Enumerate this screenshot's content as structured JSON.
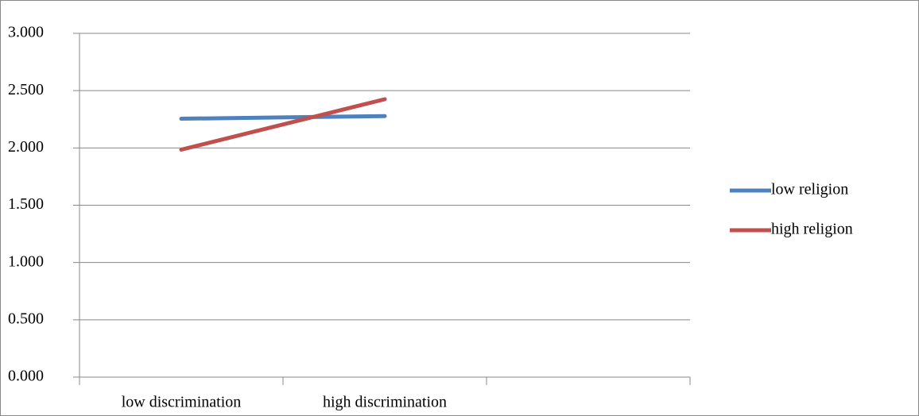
{
  "chart_data": {
    "type": "line",
    "categories": [
      "low discrimination",
      "high discrimination",
      null
    ],
    "series": [
      {
        "name": "low religion",
        "color": "#4f81bd",
        "values": [
          2.255,
          2.278,
          null
        ]
      },
      {
        "name": "high religion",
        "color": "#c0504d",
        "values": [
          1.985,
          2.425,
          null
        ]
      }
    ],
    "ylim": [
      0,
      3
    ],
    "yticks": [
      {
        "value": 0,
        "label": "0.000"
      },
      {
        "value": 0.5,
        "label": "0.500"
      },
      {
        "value": 1,
        "label": "1.000"
      },
      {
        "value": 1.5,
        "label": "1.500"
      },
      {
        "value": 2,
        "label": "2.000"
      },
      {
        "value": 2.5,
        "label": "2.500"
      },
      {
        "value": 3,
        "label": "3.000"
      }
    ],
    "grid": true,
    "legend": "right"
  }
}
